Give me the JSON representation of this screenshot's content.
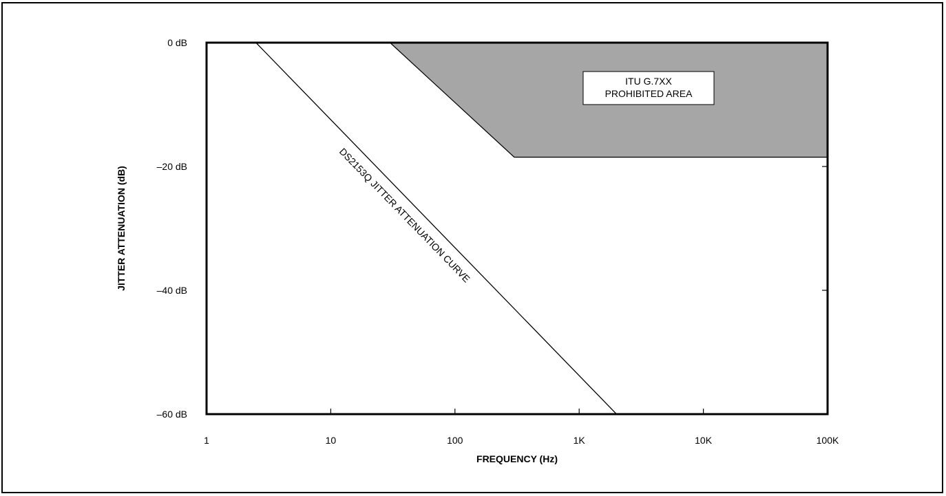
{
  "chart_data": {
    "type": "line",
    "title": "",
    "xlabel": "FREQUENCY (Hz)",
    "ylabel": "JITTER ATTENUATION (dB)",
    "x_scale": "log",
    "xlim": [
      1,
      100000
    ],
    "ylim": [
      -60,
      0
    ],
    "x_ticks": [
      {
        "value": 1,
        "label": "1"
      },
      {
        "value": 10,
        "label": "10"
      },
      {
        "value": 100,
        "label": "100"
      },
      {
        "value": 1000,
        "label": "1K"
      },
      {
        "value": 10000,
        "label": "10K"
      },
      {
        "value": 100000,
        "label": "100K"
      }
    ],
    "y_ticks": [
      {
        "value": 0,
        "label": "0 dB"
      },
      {
        "value": -20,
        "label": "–20 dB"
      },
      {
        "value": -40,
        "label": "–40 dB"
      },
      {
        "value": -60,
        "label": "–60 dB"
      }
    ],
    "grid": false,
    "series": [
      {
        "name": "DS2153Q JITTER ATTENUATION CURVE",
        "x": [
          2.5,
          2000
        ],
        "y": [
          0,
          -60
        ],
        "color": "#000000"
      }
    ],
    "regions": [
      {
        "name": "ITU G.7XX PROHIBITED AREA",
        "label_lines": [
          "ITU G.7XX",
          "PROHIBITED AREA"
        ],
        "x": [
          30,
          300,
          100000,
          100000
        ],
        "y": [
          0,
          -18.5,
          -18.5,
          0
        ],
        "color": "#a6a6a6"
      }
    ]
  }
}
